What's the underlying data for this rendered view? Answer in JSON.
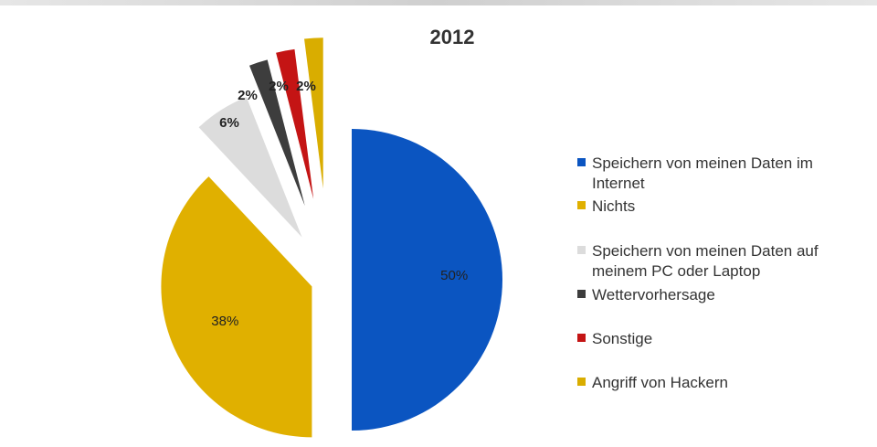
{
  "chart_data": {
    "type": "pie",
    "title": "2012",
    "slices": [
      {
        "label": "Speichern von meinen Daten im Internet",
        "value": 50,
        "display": "50%",
        "color": "#0b55c1"
      },
      {
        "label": "Nichts",
        "value": 38,
        "display": "38%",
        "color": "#e0b000"
      },
      {
        "label": "Speichern von meinen Daten auf meinem PC oder Laptop",
        "value": 6,
        "display": "6%",
        "color": "#dcdcdc"
      },
      {
        "label": "Wettervorhersage",
        "value": 2,
        "display": "2%",
        "color": "#3d3d3d"
      },
      {
        "label": "Sonstige",
        "value": 2,
        "display": "2%",
        "color": "#c41414"
      },
      {
        "label": "Angriff von Hackern",
        "value": 2,
        "display": "2%",
        "color": "#d9ad00"
      }
    ],
    "legend_position": "right"
  }
}
